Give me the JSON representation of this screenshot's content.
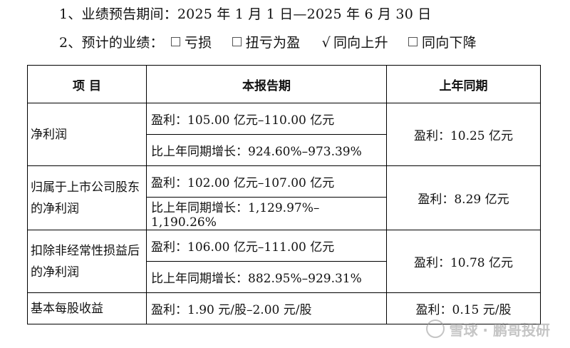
{
  "intro": {
    "period_line": "1、业绩预告期间：2025 年 1 月 1 日—2025 年 6 月 30 日",
    "perf_label": "2、预计的业绩：",
    "options": [
      {
        "label": "亏损",
        "checked": false
      },
      {
        "label": "扭亏为盈",
        "checked": false
      },
      {
        "label": "同向上升",
        "checked": true
      },
      {
        "label": "同向下降",
        "checked": false
      }
    ]
  },
  "table": {
    "headers": [
      "项 目",
      "本报告期",
      "上年同期"
    ],
    "rows": [
      {
        "item": "净利润",
        "current_profit": "盈利：105.00 亿元–110.00 亿元",
        "current_growth": "比上年同期增长：924.60%–973.39%",
        "prior": "盈利：10.25 亿元"
      },
      {
        "item": "归属于上市公司股东的净利润",
        "current_profit": "盈利：102.00 亿元–107.00 亿元",
        "current_growth": "比上年同期增长：1,129.97%–1,190.26%",
        "prior": "盈利：8.29 亿元"
      },
      {
        "item": "扣除非经常性损益后的净利润",
        "current_profit": "盈利：106.00 亿元–111.00 亿元",
        "current_growth": "比上年同期增长：882.95%–929.31%",
        "prior": "盈利：10.78 亿元"
      },
      {
        "item": "基本每股收益",
        "current_profit": "盈利：1.90 元/股–2.00 元/股",
        "prior": "盈利：0.15 元/股"
      }
    ]
  },
  "watermark": "雪球 · 鹏哥投研"
}
